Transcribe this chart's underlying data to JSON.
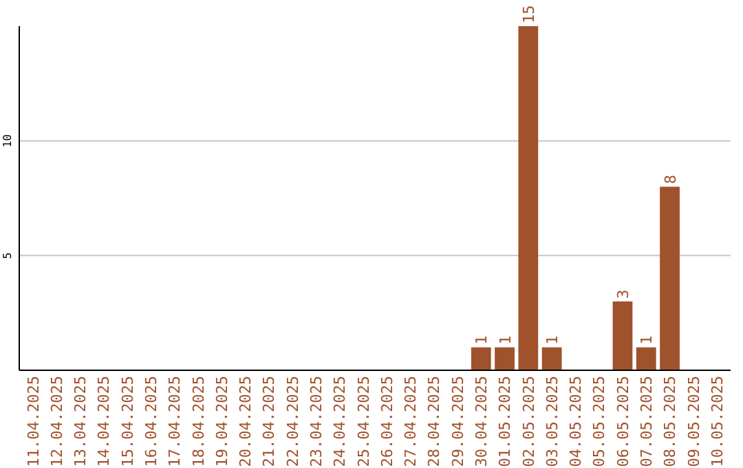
{
  "chart_data": {
    "type": "bar",
    "categories": [
      "11.04.2025",
      "12.04.2025",
      "13.04.2025",
      "14.04.2025",
      "15.04.2025",
      "16.04.2025",
      "17.04.2025",
      "18.04.2025",
      "19.04.2025",
      "20.04.2025",
      "21.04.2025",
      "22.04.2025",
      "23.04.2025",
      "24.04.2025",
      "25.04.2025",
      "26.04.2025",
      "27.04.2025",
      "28.04.2025",
      "29.04.2025",
      "30.04.2025",
      "01.05.2025",
      "02.05.2025",
      "03.05.2025",
      "04.05.2025",
      "05.05.2025",
      "06.05.2025",
      "07.05.2025",
      "08.05.2025",
      "09.05.2025",
      "10.05.2025"
    ],
    "values": [
      0,
      0,
      0,
      0,
      0,
      0,
      0,
      0,
      0,
      0,
      0,
      0,
      0,
      0,
      0,
      0,
      0,
      0,
      0,
      1,
      1,
      15,
      1,
      0,
      0,
      3,
      1,
      8,
      0,
      0
    ],
    "value_labels": [
      null,
      null,
      null,
      null,
      null,
      null,
      null,
      null,
      null,
      null,
      null,
      null,
      null,
      null,
      null,
      null,
      null,
      null,
      null,
      "1",
      "1",
      "15",
      "1",
      null,
      null,
      "3",
      "1",
      "8",
      null,
      null
    ],
    "color": "#a0522d",
    "ylim": [
      0,
      15
    ],
    "yticks": [
      5,
      10
    ],
    "grid": "y"
  }
}
